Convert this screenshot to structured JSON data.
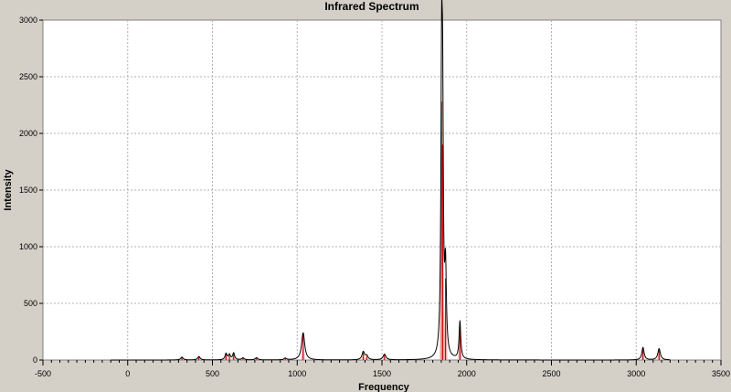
{
  "chart_data": {
    "type": "line",
    "title": "Infrared Spectrum",
    "xlabel": "Frequency",
    "ylabel": "Intensity",
    "xlim": [
      -500,
      3500
    ],
    "ylim": [
      0,
      3000
    ],
    "x_ticks": [
      -500,
      0,
      500,
      1000,
      1500,
      2000,
      2500,
      3000,
      3500
    ],
    "y_ticks": [
      0,
      500,
      1000,
      1500,
      2000,
      2500,
      3000
    ],
    "x_range_plotted": [
      -100,
      3200
    ],
    "grid": true,
    "legend": "none",
    "colors": {
      "panel_bg": "#d4d0c8",
      "plot_bg": "#ffffff",
      "grid": "#b0b0b0",
      "spectrum_line": "#000000",
      "stick_line": "#cc0000",
      "stick_fill": "#e8a0a0"
    },
    "peaks": [
      {
        "x": 320,
        "y": 25,
        "w": 9
      },
      {
        "x": 420,
        "y": 30,
        "w": 9
      },
      {
        "x": 580,
        "y": 55,
        "w": 7
      },
      {
        "x": 600,
        "y": 45,
        "w": 7
      },
      {
        "x": 625,
        "y": 60,
        "w": 7
      },
      {
        "x": 680,
        "y": 18,
        "w": 9
      },
      {
        "x": 760,
        "y": 20,
        "w": 9
      },
      {
        "x": 930,
        "y": 15,
        "w": 9
      },
      {
        "x": 1035,
        "y": 240,
        "w": 11
      },
      {
        "x": 1390,
        "y": 70,
        "w": 9
      },
      {
        "x": 1410,
        "y": 35,
        "w": 9
      },
      {
        "x": 1515,
        "y": 50,
        "w": 10
      },
      {
        "x": 1852,
        "y": 2280,
        "w": 5
      },
      {
        "x": 1858,
        "y": 1900,
        "w": 5
      },
      {
        "x": 1875,
        "y": 720,
        "w": 6
      },
      {
        "x": 1960,
        "y": 330,
        "w": 6
      },
      {
        "x": 3040,
        "y": 110,
        "w": 8
      },
      {
        "x": 3135,
        "y": 100,
        "w": 9
      }
    ]
  }
}
